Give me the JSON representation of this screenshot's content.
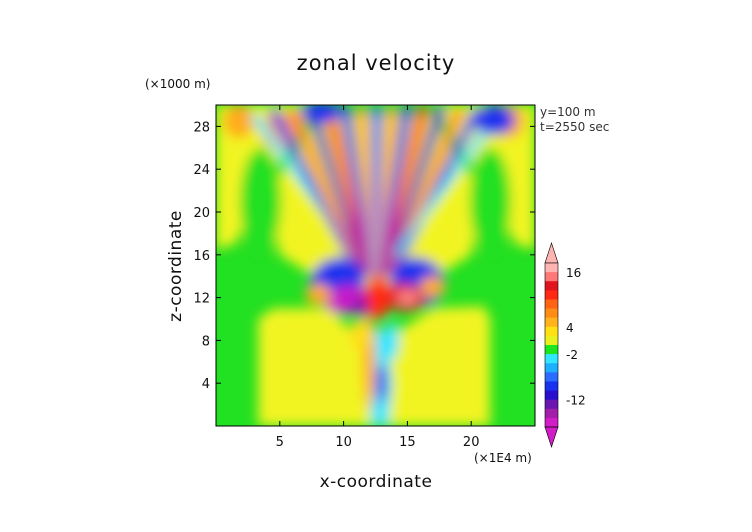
{
  "chart_data": {
    "type": "heatmap",
    "title": "zonal velocity",
    "xlabel": "x-coordinate",
    "ylabel": "z-coordinate",
    "x_unit": "(×1E4 m)",
    "y_unit": "(×1000 m)",
    "xlim": [
      0,
      25
    ],
    "ylim": [
      0,
      30
    ],
    "x_ticks": [
      5,
      10,
      15,
      20
    ],
    "y_ticks": [
      4,
      8,
      12,
      16,
      20,
      24,
      28
    ],
    "annotations": [
      "y=100 m",
      "t=2550 sec"
    ],
    "colorbar": {
      "label_values": [
        16,
        4,
        -2,
        -12
      ],
      "levels": [
        -18,
        -16,
        -14,
        -12,
        -10,
        -8,
        -6,
        -4,
        -2,
        0,
        2,
        4,
        6,
        8,
        10,
        12,
        14,
        16,
        18
      ],
      "colors": [
        "#d21cc8",
        "#a01ea8",
        "#6a16b0",
        "#2a0ed0",
        "#1a32ee",
        "#2a6cff",
        "#1eb0ff",
        "#32e6ff",
        "#1ee61e",
        "#eaf01e",
        "#ffe014",
        "#ffb41e",
        "#ff8c14",
        "#ff6414",
        "#ff2a14",
        "#e0141e",
        "#ff7878",
        "#ffb4b4"
      ],
      "extend": "both"
    }
  }
}
